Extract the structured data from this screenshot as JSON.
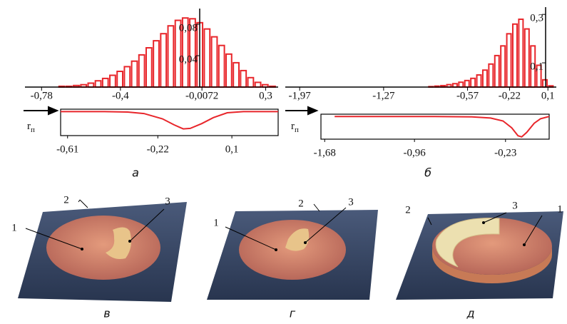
{
  "chart_data": [
    {
      "type": "histogram",
      "color": "#e8262b",
      "bins": [
        -0.7,
        -0.665,
        -0.63,
        -0.595,
        -0.56,
        -0.525,
        -0.49,
        -0.455,
        -0.42,
        -0.385,
        -0.35,
        -0.315,
        -0.28,
        -0.245,
        -0.21,
        -0.175,
        -0.14,
        -0.105,
        -0.07,
        -0.035,
        0,
        0.035,
        0.07,
        0.105,
        0.14,
        0.175,
        0.21,
        0.245,
        0.28,
        0.315,
        0.35
      ],
      "values": [
        0.001,
        0.001,
        0.002,
        0.003,
        0.005,
        0.008,
        0.011,
        0.015,
        0.02,
        0.026,
        0.033,
        0.041,
        0.05,
        0.059,
        0.068,
        0.078,
        0.085,
        0.088,
        0.087,
        0.082,
        0.074,
        0.064,
        0.053,
        0.042,
        0.031,
        0.021,
        0.012,
        0.006,
        0.003,
        0.001
      ],
      "xlim": [
        -0.86,
        0.36
      ],
      "ylim": [
        0,
        0.1
      ],
      "xticks": [
        {
          "value": -0.78,
          "label": "-0,78"
        },
        {
          "value": -0.4,
          "label": "-0,4"
        },
        {
          "value": -0.0072,
          "label": "-0,0072"
        },
        {
          "value": 0.3,
          "label": "0,3"
        }
      ],
      "yticks": [
        {
          "value": 0.04,
          "label": "0,04"
        },
        {
          "value": 0.08,
          "label": "0,08"
        }
      ]
    },
    {
      "type": "line",
      "color": "#e8262b",
      "y_label": "r",
      "y_label_sub": "п",
      "x": [
        -0.64,
        -0.45,
        -0.35,
        -0.28,
        -0.2,
        -0.15,
        -0.11,
        -0.08,
        -0.03,
        0.02,
        0.08,
        0.15,
        0.3
      ],
      "values": [
        0,
        0,
        -0.02,
        -0.08,
        -0.3,
        -0.55,
        -0.72,
        -0.7,
        -0.5,
        -0.25,
        -0.05,
        0,
        0
      ],
      "xlim": [
        -0.64,
        0.3
      ],
      "ylim": [
        -1.0,
        0.1
      ],
      "xticks": [
        {
          "value": -0.61,
          "label": "-0,61"
        },
        {
          "value": -0.22,
          "label": "-0,22"
        },
        {
          "value": 0.1,
          "label": "0,1"
        }
      ],
      "caption": "а"
    },
    {
      "type": "histogram",
      "color": "#e8262b",
      "bins": [
        -0.9,
        -0.85,
        -0.8,
        -0.75,
        -0.7,
        -0.65,
        -0.6,
        -0.55,
        -0.5,
        -0.45,
        -0.4,
        -0.35,
        -0.3,
        -0.25,
        -0.2,
        -0.15,
        -0.1,
        -0.05,
        0,
        0.05,
        0.1,
        0.15
      ],
      "values": [
        0.002,
        0.004,
        0.006,
        0.01,
        0.014,
        0.02,
        0.027,
        0.036,
        0.05,
        0.07,
        0.095,
        0.13,
        0.17,
        0.22,
        0.26,
        0.28,
        0.24,
        0.17,
        0.09,
        0.03,
        0.005
      ],
      "xlim": [
        -2.09,
        0.17
      ],
      "ylim": [
        0,
        0.33
      ],
      "xticks": [
        {
          "value": -1.97,
          "label": "-1,97"
        },
        {
          "value": -1.27,
          "label": "-1,27"
        },
        {
          "value": -0.57,
          "label": "-0,57"
        },
        {
          "value": -0.22,
          "label": "-0,22"
        },
        {
          "value": 0.1,
          "label": "0,1"
        }
      ],
      "yticks": [
        {
          "value": 0.1,
          "label": "0,1"
        },
        {
          "value": 0.3,
          "label": "0,3"
        }
      ]
    },
    {
      "type": "line",
      "color": "#e8262b",
      "y_label": "r",
      "y_label_sub": "п",
      "x": [
        -1.6,
        -0.8,
        -0.5,
        -0.35,
        -0.25,
        -0.18,
        -0.13,
        -0.1,
        -0.06,
        0,
        0.05,
        0.12
      ],
      "values": [
        0,
        0,
        -0.02,
        -0.07,
        -0.2,
        -0.5,
        -0.85,
        -0.9,
        -0.7,
        -0.3,
        -0.1,
        0
      ],
      "xlim": [
        -1.71,
        0.12
      ],
      "ylim": [
        -1.0,
        0.1
      ],
      "xticks": [
        {
          "value": -1.68,
          "label": "-1,68"
        },
        {
          "value": -0.96,
          "label": "-0,96"
        },
        {
          "value": -0.23,
          "label": "-0,23"
        }
      ],
      "caption": "б"
    }
  ],
  "images": [
    {
      "labels": [
        "1",
        "2",
        "3"
      ],
      "caption": "в"
    },
    {
      "labels": [
        "1",
        "2",
        "3"
      ],
      "caption": "г"
    },
    {
      "labels": [
        "1",
        "2",
        "3"
      ],
      "caption": "д"
    }
  ]
}
